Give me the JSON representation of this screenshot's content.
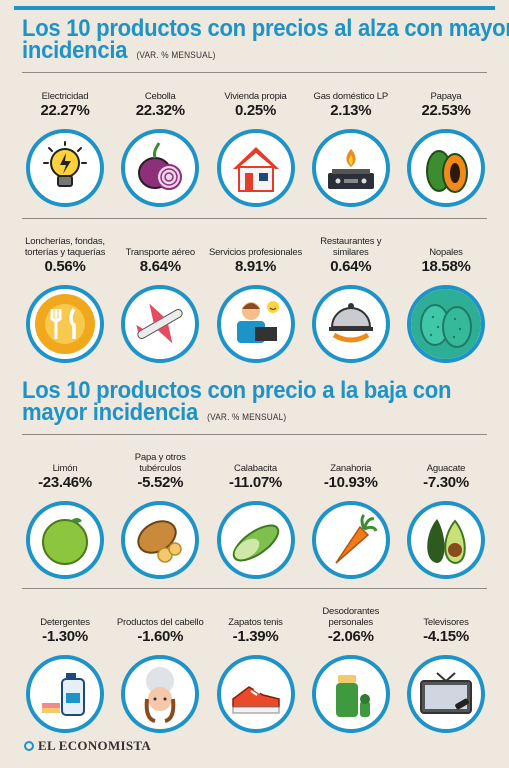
{
  "section_up": {
    "title_line1": "Los 10 productos con precios al alza con mayor",
    "title_line2": "incidencia",
    "note": "(VAR. % MENSUAL)",
    "items": [
      {
        "label": "Electricidad",
        "value": "22.27%",
        "icon": "lightbulb-icon"
      },
      {
        "label": "Cebolla",
        "value": "22.32%",
        "icon": "onion-icon"
      },
      {
        "label": "Vivienda propia",
        "value": "0.25%",
        "icon": "house-icon"
      },
      {
        "label": "Gas doméstico LP",
        "value": "2.13%",
        "icon": "gas-stove-icon"
      },
      {
        "label": "Papaya",
        "value": "22.53%",
        "icon": "papaya-icon"
      },
      {
        "label": "Loncherías, fondas, torterías y taquerías",
        "value": "0.56%",
        "icon": "plate-cutlery-icon"
      },
      {
        "label": "Transporte aéreo",
        "value": "8.64%",
        "icon": "airplane-icon"
      },
      {
        "label": "Servicios profesionales",
        "value": "8.91%",
        "icon": "professional-icon"
      },
      {
        "label": "Restaurantes y similares",
        "value": "0.64%",
        "icon": "cloche-icon"
      },
      {
        "label": "Nopales",
        "value": "18.58%",
        "icon": "nopal-icon"
      }
    ]
  },
  "section_down": {
    "title_line1": "Los 10 productos con precio a la baja con",
    "title_line2": "mayor incidencia",
    "note": "(VAR. % MENSUAL)",
    "items": [
      {
        "label": "Limón",
        "value": "-23.46%",
        "icon": "lime-icon"
      },
      {
        "label": "Papa y otros tubérculos",
        "value": "-5.52%",
        "icon": "potato-icon"
      },
      {
        "label": "Calabacita",
        "value": "-11.07%",
        "icon": "zucchini-icon"
      },
      {
        "label": "Zanahoria",
        "value": "-10.93%",
        "icon": "carrot-icon"
      },
      {
        "label": "Aguacate",
        "value": "-7.30%",
        "icon": "avocado-icon"
      },
      {
        "label": "Detergentes",
        "value": "-1.30%",
        "icon": "detergent-icon"
      },
      {
        "label": "Productos del cabello",
        "value": "-1.60%",
        "icon": "hair-icon"
      },
      {
        "label": "Zapatos tenis",
        "value": "-1.39%",
        "icon": "sneaker-icon"
      },
      {
        "label": "Desodorantes personales",
        "value": "-2.06%",
        "icon": "deodorant-icon"
      },
      {
        "label": "Televisores",
        "value": "-4.15%",
        "icon": "tv-icon"
      }
    ]
  },
  "brand": "EL ECONOMISTA",
  "colors": {
    "accent": "#1e93c8",
    "background": "#efe8df"
  }
}
